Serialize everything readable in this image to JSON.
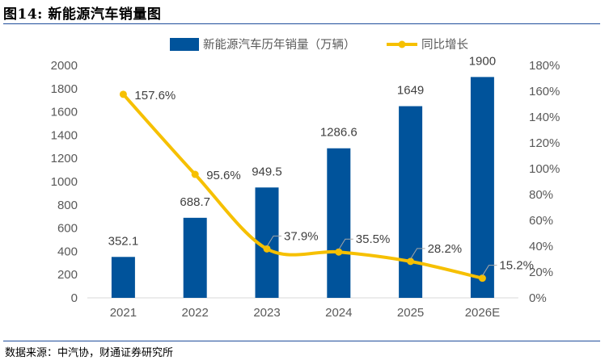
{
  "figure": {
    "title": "图14: 新能源汽车销量图",
    "source": "数据来源：中汽协，财通证券研究所"
  },
  "colors": {
    "bar": "#00539b",
    "line": "#f6c000",
    "rule": "#1f4e9b",
    "leader": "#a6a6a6"
  },
  "chart_data": {
    "type": "bar",
    "categories": [
      "2021",
      "2022",
      "2023",
      "2024",
      "2025",
      "2026E"
    ],
    "series": [
      {
        "name": "新能源汽车历年销量（万辆）",
        "type": "bar",
        "axis": "left",
        "values": [
          352.1,
          688.7,
          949.5,
          1286.6,
          1649,
          1900
        ],
        "labels": [
          "352.1",
          "688.7",
          "949.5",
          "1286.6",
          "1649",
          "1900"
        ]
      },
      {
        "name": "同比增长",
        "type": "line",
        "axis": "right",
        "values": [
          157.6,
          95.6,
          37.9,
          35.5,
          28.2,
          15.2
        ],
        "labels": [
          "157.6%",
          "95.6%",
          "37.9%",
          "35.5%",
          "28.2%",
          "15.2%"
        ]
      }
    ],
    "ylim": [
      0,
      2000
    ],
    "yticks": [
      "0",
      "200",
      "400",
      "600",
      "800",
      "1000",
      "1200",
      "1400",
      "1600",
      "1800",
      "2000"
    ],
    "y2lim": [
      0,
      180
    ],
    "y2ticks": [
      "0%",
      "20%",
      "40%",
      "60%",
      "80%",
      "100%",
      "120%",
      "140%",
      "160%",
      "180%"
    ],
    "legend": "top-center",
    "grid": false
  }
}
